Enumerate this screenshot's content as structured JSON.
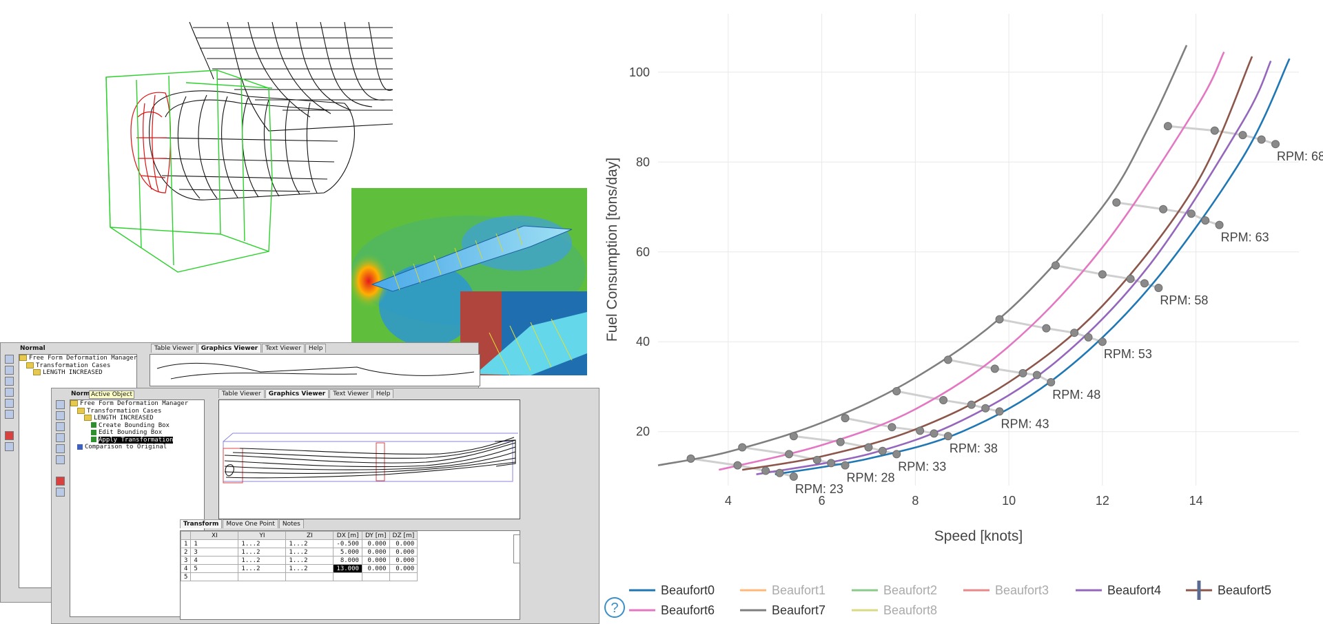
{
  "left_panel": {
    "window1": {
      "header": "Normal",
      "tabs": [
        "Table Viewer",
        "Graphics Viewer",
        "Text Viewer",
        "Help"
      ],
      "tree": [
        "Free Form Deformation Manager",
        "Transformation Cases",
        "LENGTH INCREASED"
      ]
    },
    "window2": {
      "header": "Norm",
      "tooltip": "Active Object",
      "tabs": [
        "Table Viewer",
        "Graphics Viewer",
        "Text Viewer",
        "Help"
      ],
      "tree": [
        "Free Form Deformation Manager",
        "Transformation Cases",
        "LENGTH INCREASED",
        "Create Bounding Box",
        "Edit Bounding Box",
        "Apply Transformation",
        "Comparison to Original"
      ],
      "bottom_tabs": [
        "Transform",
        "Move One Point",
        "Notes"
      ],
      "table": {
        "columns": [
          "XI",
          "YI",
          "ZI",
          "DX [m]",
          "DY [m]",
          "DZ [m]"
        ],
        "rows": [
          [
            "1",
            "1",
            "1...2",
            "1...2",
            "-0.500",
            "0.000",
            "0.000"
          ],
          [
            "2",
            "3",
            "1...2",
            "1...2",
            "5.000",
            "0.000",
            "0.000"
          ],
          [
            "3",
            "4",
            "1...2",
            "1...2",
            "8.000",
            "0.000",
            "0.000"
          ],
          [
            "4",
            "5",
            "1...2",
            "1...2",
            "13.000",
            "0.000",
            "0.000"
          ],
          [
            "5",
            "",
            "",
            "",
            "",
            "",
            ""
          ]
        ]
      }
    }
  },
  "chart_data": {
    "type": "line",
    "xlabel": "Speed [knots]",
    "ylabel": "Fuel Consumption [tons/day]",
    "xlim": [
      2.5,
      16.2
    ],
    "ylim": [
      8,
      113
    ],
    "x_ticks": [
      4,
      6,
      8,
      10,
      12,
      14
    ],
    "y_ticks": [
      20,
      40,
      60,
      80,
      100
    ],
    "grid": true,
    "legend_position": "bottom",
    "help_icon": "?",
    "series": [
      {
        "name": "Beaufort0",
        "color": "#1f77b4",
        "visible": true,
        "x": [
          5.0,
          7.0,
          9.0,
          11.0,
          13.0,
          15.0,
          16.0
        ],
        "y": [
          10.5,
          14.0,
          20.0,
          32.0,
          52.0,
          81.0,
          103.0
        ]
      },
      {
        "name": "Beaufort1",
        "color": "#ff7f0e",
        "visible": false
      },
      {
        "name": "Beaufort2",
        "color": "#2ca02c",
        "visible": false
      },
      {
        "name": "Beaufort3",
        "color": "#d62728",
        "visible": false
      },
      {
        "name": "Beaufort4",
        "color": "#9467bd",
        "visible": true,
        "x": [
          4.6,
          7.0,
          9.0,
          11.0,
          13.0,
          15.0,
          15.6
        ],
        "y": [
          10.5,
          15.0,
          22.5,
          35.5,
          57.0,
          89.0,
          102.5
        ]
      },
      {
        "name": "Beaufort5",
        "color": "#8c564b",
        "visible": true,
        "x": [
          4.3,
          6.0,
          8.0,
          10.0,
          12.0,
          14.0,
          15.2
        ],
        "y": [
          11.5,
          14.5,
          20.5,
          31.0,
          48.0,
          75.0,
          103.5
        ]
      },
      {
        "name": "Beaufort6",
        "color": "#e377c2",
        "visible": true,
        "x": [
          3.8,
          6.0,
          8.0,
          10.0,
          12.0,
          14.0,
          14.6
        ],
        "y": [
          11.5,
          17.0,
          25.0,
          39.0,
          61.0,
          92.0,
          104.5
        ]
      },
      {
        "name": "Beaufort7",
        "color": "#7f7f7f",
        "visible": true,
        "x": [
          2.5,
          4.0,
          6.0,
          8.0,
          10.0,
          12.0,
          13.0,
          13.8
        ],
        "y": [
          12.5,
          15.5,
          22.0,
          32.0,
          47.0,
          70.0,
          88.0,
          106.0
        ]
      },
      {
        "name": "Beaufort8",
        "color": "#bcbd22",
        "visible": false
      }
    ],
    "rpm_lines": [
      {
        "label": "RPM: 23",
        "points": [
          [
            3.2,
            14.0
          ],
          [
            4.2,
            12.5
          ],
          [
            4.8,
            11.3
          ],
          [
            5.1,
            10.8
          ],
          [
            5.4,
            10.0
          ]
        ]
      },
      {
        "label": "RPM: 28",
        "points": [
          [
            4.3,
            16.5
          ],
          [
            5.3,
            15.0
          ],
          [
            5.9,
            13.7
          ],
          [
            6.2,
            13.0
          ],
          [
            6.5,
            12.5
          ]
        ]
      },
      {
        "label": "RPM: 33",
        "points": [
          [
            5.4,
            19.0
          ],
          [
            6.4,
            17.7
          ],
          [
            7.0,
            16.5
          ],
          [
            7.3,
            15.7
          ],
          [
            7.6,
            15.0
          ]
        ]
      },
      {
        "label": "RPM: 38",
        "points": [
          [
            6.5,
            23.0
          ],
          [
            7.5,
            21.0
          ],
          [
            8.1,
            20.2
          ],
          [
            8.4,
            19.6
          ],
          [
            8.7,
            19.0
          ]
        ]
      },
      {
        "label": "RPM: 43",
        "points": [
          [
            7.6,
            29.0
          ],
          [
            8.6,
            27.0
          ],
          [
            9.2,
            26.0
          ],
          [
            9.5,
            25.2
          ],
          [
            9.8,
            24.5
          ]
        ]
      },
      {
        "label": "RPM: 48",
        "points": [
          [
            8.7,
            36.0
          ],
          [
            9.7,
            34.0
          ],
          [
            10.3,
            33.0
          ],
          [
            10.6,
            32.6
          ],
          [
            10.9,
            31.0
          ]
        ]
      },
      {
        "label": "RPM: 53",
        "points": [
          [
            9.8,
            45.0
          ],
          [
            10.8,
            43.0
          ],
          [
            11.4,
            42.0
          ],
          [
            11.7,
            41.0
          ],
          [
            12.0,
            40.0
          ]
        ]
      },
      {
        "label": "RPM: 58",
        "points": [
          [
            11.0,
            57.0
          ],
          [
            12.0,
            55.0
          ],
          [
            12.6,
            54.0
          ],
          [
            12.9,
            53.0
          ],
          [
            13.2,
            52.0
          ]
        ]
      },
      {
        "label": "RPM: 63",
        "points": [
          [
            12.3,
            71.0
          ],
          [
            13.3,
            69.5
          ],
          [
            13.9,
            68.5
          ],
          [
            14.2,
            67.0
          ],
          [
            14.5,
            66.0
          ]
        ]
      },
      {
        "label": "RPM: 68",
        "points": [
          [
            13.4,
            88.0
          ],
          [
            14.4,
            87.0
          ],
          [
            15.0,
            86.0
          ],
          [
            15.4,
            85.0
          ],
          [
            15.7,
            84.0
          ]
        ]
      }
    ]
  }
}
